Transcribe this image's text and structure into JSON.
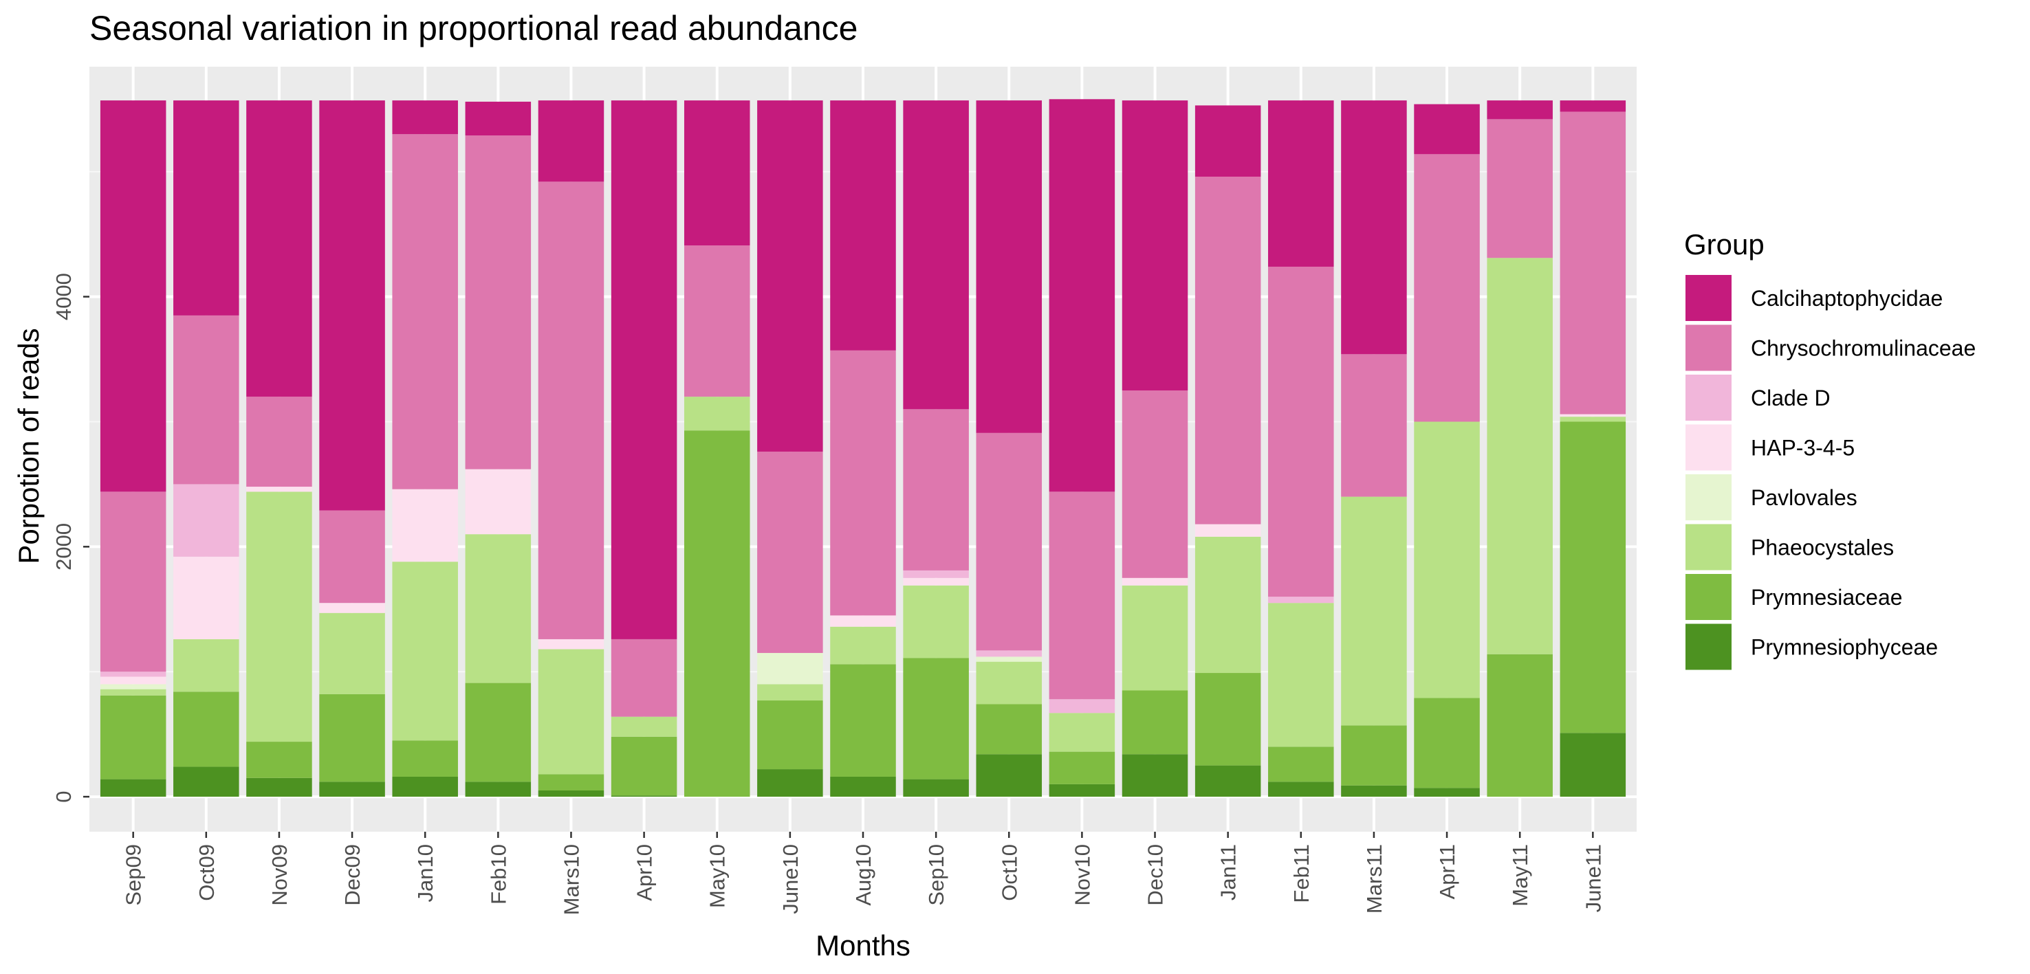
{
  "chart_data": {
    "type": "bar",
    "stacked": true,
    "title": "Seasonal variation in proportional read abundance",
    "xlabel": "Months",
    "ylabel": "Porpotion of reads",
    "ylim": [
      -280,
      5840
    ],
    "yticks": [
      0,
      2000,
      4000
    ],
    "grid": true,
    "legend_position": "right",
    "legend_title": "Group",
    "categories": [
      "Sep09",
      "Oct09",
      "Nov09",
      "Dec09",
      "Jan10",
      "Feb10",
      "Mars10",
      "Apr10",
      "May10",
      "June10",
      "Aug10",
      "Sep10",
      "Oct10",
      "Nov10",
      "Dec10",
      "Jan11",
      "Feb11",
      "Mars11",
      "Apr11",
      "May11",
      "June11"
    ],
    "series": [
      {
        "name": "Prymnesiophyceae",
        "color": "#4d9221",
        "values": [
          140,
          240,
          150,
          120,
          160,
          120,
          50,
          10,
          0,
          220,
          160,
          140,
          340,
          100,
          340,
          250,
          120,
          90,
          70,
          0,
          510
        ]
      },
      {
        "name": "Prymnesiaceae",
        "color": "#7fbc41",
        "values": [
          670,
          600,
          290,
          700,
          290,
          790,
          130,
          470,
          2930,
          550,
          900,
          970,
          400,
          260,
          510,
          740,
          280,
          480,
          720,
          1140,
          2490
        ]
      },
      {
        "name": "Phaeocystales",
        "color": "#b8e186",
        "values": [
          50,
          420,
          2000,
          650,
          1430,
          1190,
          1000,
          160,
          270,
          130,
          300,
          580,
          340,
          310,
          840,
          1090,
          1150,
          1830,
          2210,
          3170,
          40
        ]
      },
      {
        "name": "Pavlovales",
        "color": "#e6f5d0",
        "values": [
          40,
          0,
          0,
          0,
          0,
          0,
          0,
          0,
          0,
          250,
          0,
          0,
          40,
          0,
          0,
          0,
          0,
          0,
          0,
          0,
          0
        ]
      },
      {
        "name": "HAP-3-4-5",
        "color": "#fde0ef",
        "values": [
          60,
          660,
          40,
          80,
          580,
          520,
          80,
          0,
          0,
          0,
          90,
          60,
          0,
          0,
          60,
          100,
          0,
          0,
          0,
          0,
          20
        ]
      },
      {
        "name": "Clade D",
        "color": "#f1b6da",
        "values": [
          40,
          580,
          0,
          0,
          0,
          0,
          0,
          0,
          0,
          0,
          0,
          60,
          50,
          110,
          0,
          0,
          50,
          0,
          0,
          0,
          0
        ]
      },
      {
        "name": "Chrysochromulinaceae",
        "color": "#de77ae",
        "values": [
          1440,
          1350,
          720,
          740,
          2840,
          2670,
          3660,
          620,
          1210,
          1610,
          2120,
          1290,
          1740,
          1660,
          1500,
          2780,
          2640,
          1140,
          2140,
          1110,
          2420
        ]
      },
      {
        "name": "Calcihaptophycidae",
        "color": "#c51b7d",
        "values": [
          3130,
          1720,
          2370,
          3280,
          270,
          270,
          650,
          4310,
          1160,
          2810,
          2000,
          2470,
          2660,
          3140,
          2320,
          570,
          1330,
          2030,
          400,
          150,
          90
        ]
      }
    ]
  }
}
